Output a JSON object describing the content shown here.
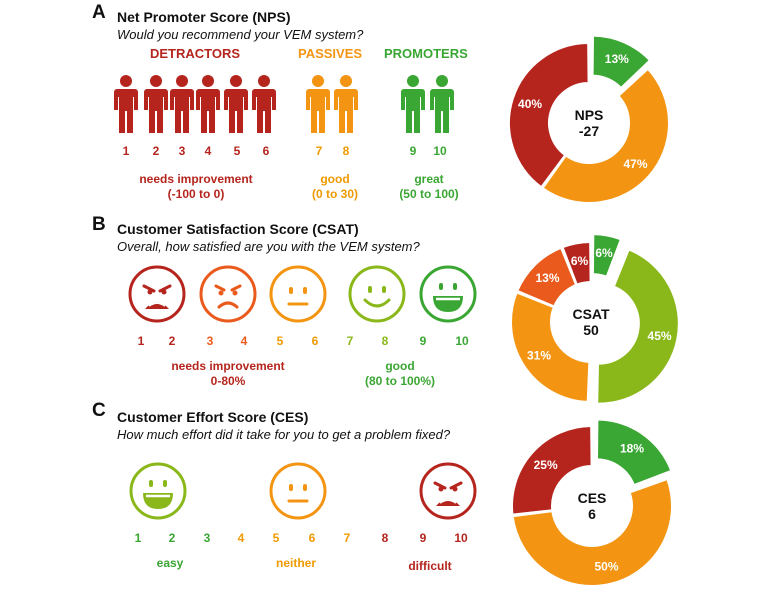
{
  "colors": {
    "red": "#b5251d",
    "redorange": "#ea5a1c",
    "orange": "#f39513",
    "yellow": "#ee9a00",
    "lime": "#8ab81a",
    "green": "#3aa633",
    "white": "#ffffff"
  },
  "panel_a": {
    "letter": "A",
    "title": "Net Promoter Score (NPS)",
    "question": "Would you recommend your VEM system?",
    "categories": {
      "detractors": "DETRACTORS",
      "passives": "PASSIVES",
      "promoters": "PROMOTERS"
    },
    "scale": [
      "1",
      "2",
      "3",
      "4",
      "5",
      "6",
      "7",
      "8",
      "9",
      "10"
    ],
    "labels": {
      "detractors": [
        "needs improvement",
        "(-100 to 0)"
      ],
      "passives": [
        "good",
        "(0 to 30)"
      ],
      "promoters": [
        "great",
        "(50 to 100)"
      ]
    },
    "icon": "person-icon"
  },
  "panel_b": {
    "letter": "B",
    "title": "Customer Satisfaction Score (CSAT)",
    "question": "Overall, how satisfied are you with the VEM system?",
    "scale": [
      "1",
      "2",
      "3",
      "4",
      "5",
      "6",
      "7",
      "8",
      "9",
      "10"
    ],
    "faces": [
      "angry-face-icon",
      "frown-face-icon",
      "neutral-face-icon",
      "smile-face-icon",
      "grin-face-icon"
    ],
    "labels": {
      "low": [
        "needs improvement",
        "0-80%"
      ],
      "high": [
        "good",
        "(80 to 100%)"
      ]
    }
  },
  "panel_c": {
    "letter": "C",
    "title": "Customer Effort Score (CES)",
    "question": "How much effort did it take for you to get a problem fixed?",
    "scale": [
      "1",
      "2",
      "3",
      "4",
      "5",
      "6",
      "7",
      "8",
      "9",
      "10"
    ],
    "faces": [
      "grin-face-icon",
      "neutral-face-icon",
      "angry-face-icon"
    ],
    "labels": {
      "easy": "easy",
      "neither": "neither",
      "difficult": "difficult"
    }
  },
  "chart_data": [
    {
      "type": "pie",
      "title": "",
      "center_label": [
        "NPS",
        "-27"
      ],
      "slices": [
        {
          "value": 13,
          "label": "13%",
          "color": "#3aa633",
          "exploded": true
        },
        {
          "value": 47,
          "label": "47%",
          "color": "#f39513",
          "exploded": false
        },
        {
          "value": 40,
          "label": "40%",
          "color": "#b5251d",
          "exploded": false
        }
      ]
    },
    {
      "type": "pie",
      "title": "",
      "center_label": [
        "CSAT",
        "50"
      ],
      "slices": [
        {
          "value": 6,
          "label": "6%",
          "color": "#3aa633",
          "exploded": true
        },
        {
          "value": 45,
          "label": "45%",
          "color": "#8ab81a",
          "exploded": true
        },
        {
          "value": 31,
          "label": "31%",
          "color": "#f39513",
          "exploded": false
        },
        {
          "value": 13,
          "label": "13%",
          "color": "#ea5a1c",
          "exploded": false
        },
        {
          "value": 6,
          "label": "6%",
          "color": "#b5251d",
          "exploded": false
        }
      ]
    },
    {
      "type": "pie",
      "title": "",
      "center_label": [
        "CES",
        "6"
      ],
      "slices": [
        {
          "value": 18,
          "label": "18%",
          "color": "#3aa633",
          "exploded": true
        },
        {
          "value": 50,
          "label": "50%",
          "color": "#f39513",
          "exploded": false
        },
        {
          "value": 25,
          "label": "25%",
          "color": "#b5251d",
          "exploded": false
        }
      ]
    }
  ]
}
